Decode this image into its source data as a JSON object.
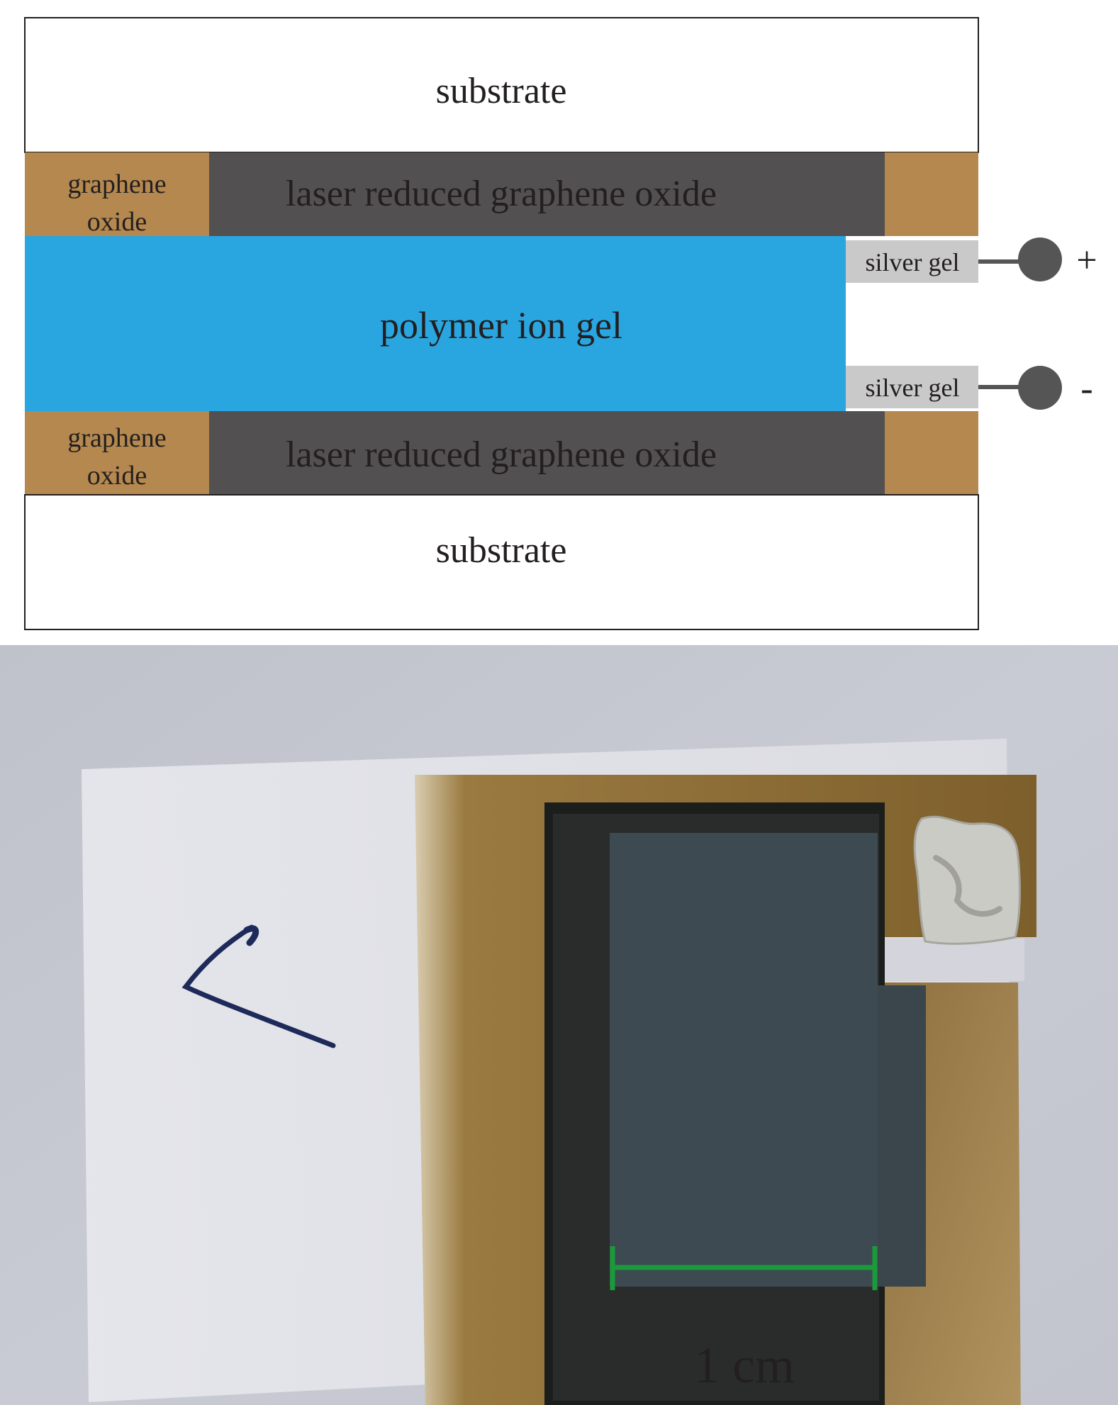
{
  "diagram": {
    "layers": {
      "substrate_top": "substrate",
      "graphene_oxide_top": [
        "graphene",
        "oxide"
      ],
      "lrgo_top": "laser reduced graphene oxide",
      "polymer_ion_gel": "polymer ion gel",
      "silver_gel_top": "silver gel",
      "silver_gel_bottom": "silver gel",
      "graphene_oxide_bottom": [
        "graphene",
        "oxide"
      ],
      "lrgo_bottom": "laser reduced graphene oxide",
      "substrate_bottom": "substrate"
    },
    "terminals": {
      "positive": "+",
      "negative": "-"
    },
    "colors": {
      "substrate": "#ffffff",
      "graphene_oxide": "#b4884e",
      "lrgo": "#525050",
      "polymer_ion_gel": "#29a6e0",
      "silver_gel": "#c9c9c9",
      "terminal": "#555555",
      "text": "#231f20"
    }
  },
  "photo": {
    "scale_bar_label": "1 cm",
    "colors": {
      "background": "#c4c6d0",
      "scale_bar": "#1a9a3a"
    }
  }
}
